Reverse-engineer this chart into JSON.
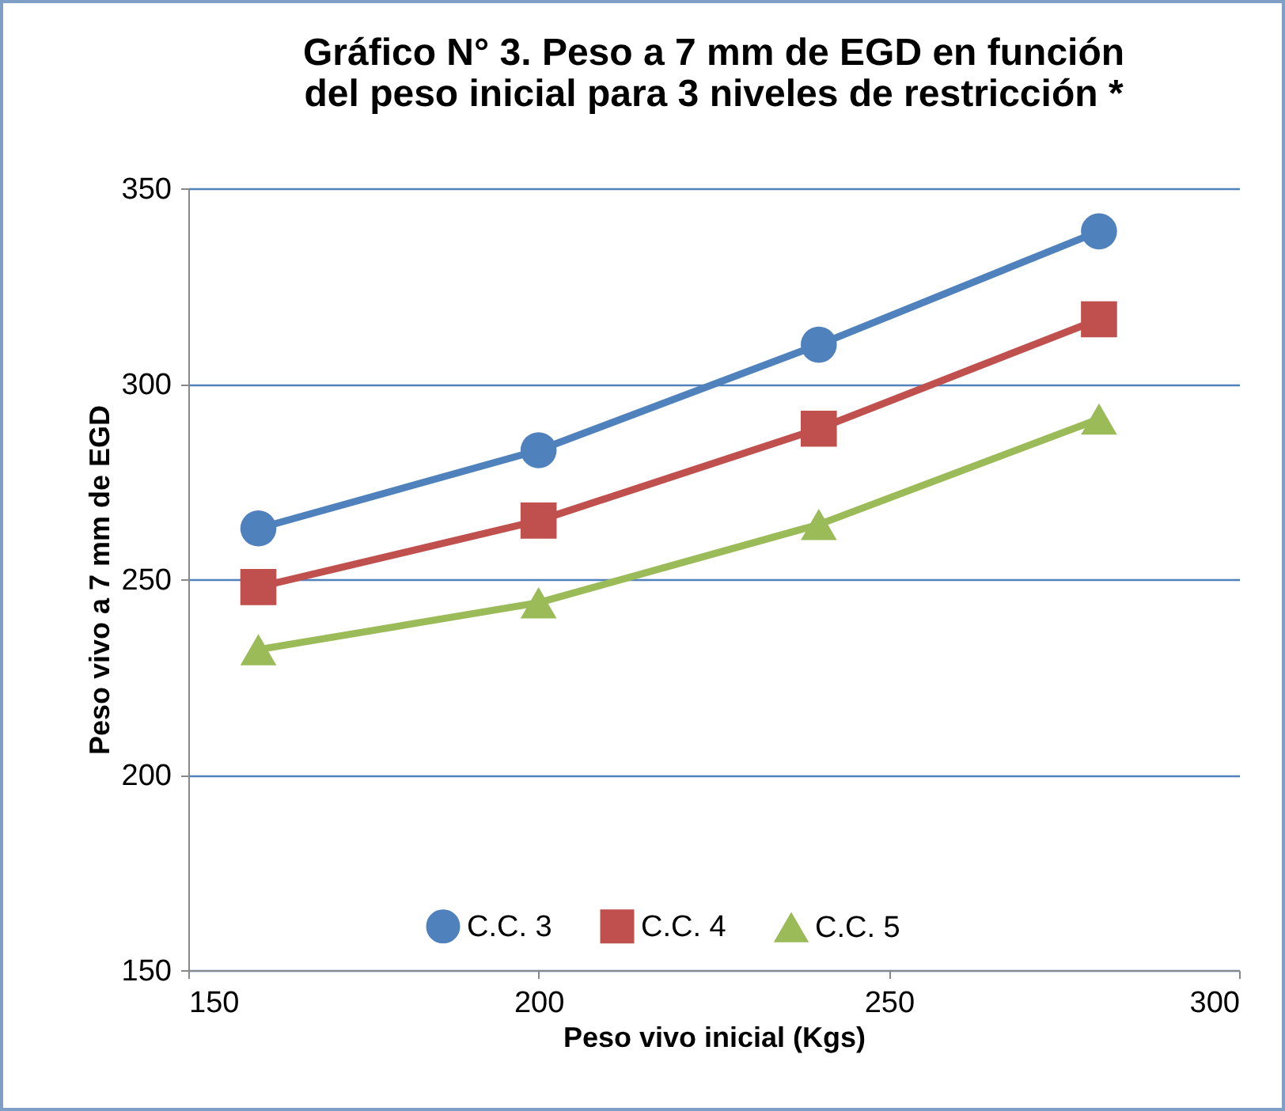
{
  "chart_data": {
    "type": "line",
    "title": "Gráfico N° 3. Peso a 7 mm de EGD en función del peso inicial para 3 niveles de restricción *",
    "xlabel": "Peso vivo inicial (Kgs)",
    "ylabel": "Peso vivo  a 7 mm de EGD",
    "x": [
      160,
      200,
      240,
      280
    ],
    "series": [
      {
        "name": "C.C. 3",
        "color": "#4f81bd",
        "marker": "circle",
        "values": [
          263,
          283,
          310,
          339
        ]
      },
      {
        "name": "C.C. 4",
        "color": "#c0504d",
        "marker": "square",
        "values": [
          248,
          265,
          288.5,
          316.5
        ]
      },
      {
        "name": "C.C. 5",
        "color": "#9bbb59",
        "marker": "triangle",
        "values": [
          232,
          244,
          264,
          291
        ]
      }
    ],
    "xlim": [
      150,
      300
    ],
    "xticks": [
      150,
      200,
      250,
      300
    ],
    "ylim": [
      150,
      350
    ],
    "yticks": [
      150,
      200,
      250,
      300,
      350
    ],
    "grid": "y",
    "legend": "bottom",
    "line_style": "solid"
  }
}
